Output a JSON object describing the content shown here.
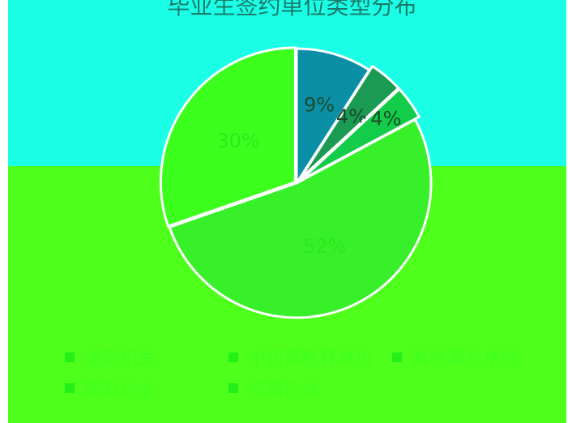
{
  "chart_data": {
    "type": "pie",
    "title": "毕业生签约单位类型分布",
    "categories": [
      "党政机关",
      "中初等教育单位",
      "其他事业单位",
      "国有企业",
      "民营企业"
    ],
    "values": [
      9,
      4,
      4,
      52,
      30
    ],
    "value_labels": [
      "9%",
      "4%",
      "4%",
      "52%",
      "30%"
    ],
    "colors": [
      "#0b8fa6",
      "#1a9a52",
      "#12cc4a",
      "#38f02a",
      "#3dff1e"
    ],
    "legend_position": "bottom"
  }
}
